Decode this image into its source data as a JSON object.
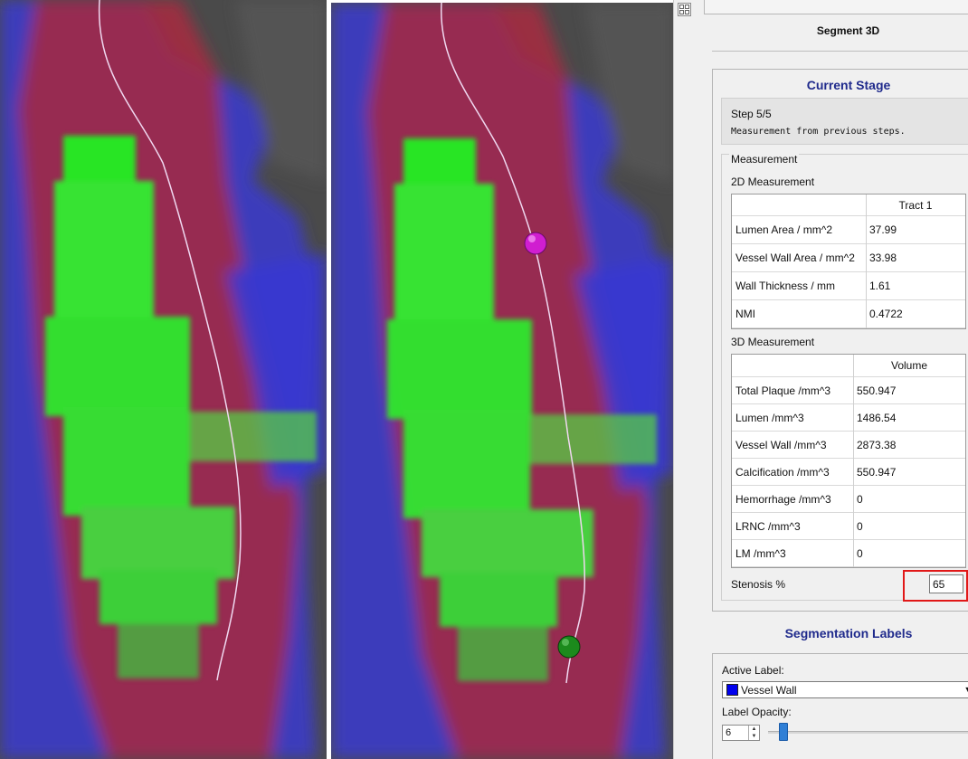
{
  "panel": {
    "module_title": "Segment 3D",
    "current_stage": {
      "heading": "Current Stage",
      "step": "Step 5/5",
      "description": "Measurement from previous steps."
    },
    "measurement": {
      "title": "Measurement",
      "measurement_2d": {
        "title": "2D Measurement",
        "column_header": "Tract 1",
        "rows": [
          {
            "label": "Lumen Area / mm^2",
            "value": "37.99"
          },
          {
            "label": "Vessel Wall Area / mm^2",
            "value": "33.98"
          },
          {
            "label": "Wall Thickness / mm",
            "value": "1.61"
          },
          {
            "label": "NMI",
            "value": "0.4722"
          }
        ]
      },
      "measurement_3d": {
        "title": "3D Measurement",
        "column_header": "Volume",
        "rows": [
          {
            "label": "Total Plaque /mm^3",
            "value": "550.947"
          },
          {
            "label": "Lumen /mm^3",
            "value": "1486.54"
          },
          {
            "label": "Vessel Wall /mm^3",
            "value": "2873.38"
          },
          {
            "label": "Calcification /mm^3",
            "value": "550.947"
          },
          {
            "label": "Hemorrhage /mm^3",
            "value": "0"
          },
          {
            "label": "LRNC /mm^3",
            "value": "0"
          },
          {
            "label": "LM /mm^3",
            "value": "0"
          }
        ]
      },
      "stenosis": {
        "label": "Stenosis %",
        "value": "65"
      }
    },
    "segmentation_labels": {
      "heading": "Segmentation Labels",
      "active_label_caption": "Active Label:",
      "active_label_value": "Vessel Wall",
      "active_label_color": "#0000ee",
      "opacity_caption": "Label Opacity:",
      "opacity_value": "6",
      "opacity_fraction": 0.06
    }
  },
  "viewer": {
    "label_colors": {
      "vessel_wall": "#3030c8",
      "lumen": "#b0283c",
      "plaque": "#22ff22",
      "background": "#4a4a4a",
      "centerline": "#f0d8f0",
      "start_marker": "#d01ed0",
      "end_marker": "#1c8a1c"
    }
  }
}
